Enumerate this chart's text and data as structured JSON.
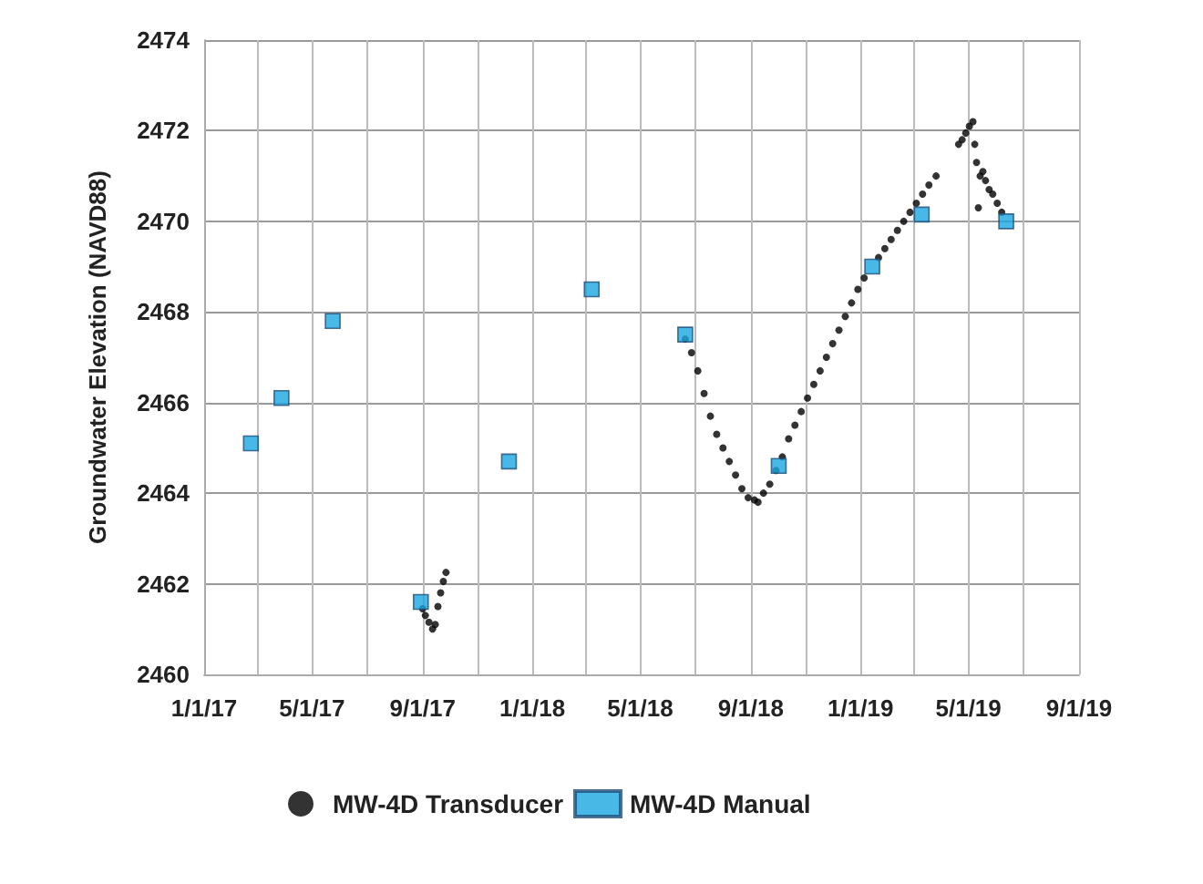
{
  "chart_data": {
    "type": "scatter",
    "ylabel": "Groundwater Elevation (NAVD88)",
    "grid": true,
    "legend": "bottom",
    "xlim": [
      "2017-01-01",
      "2019-09-01"
    ],
    "xticks": [
      {
        "value": "2017-01-01",
        "label": "1/1/17"
      },
      {
        "value": "2017-03-01",
        "label": null
      },
      {
        "value": "2017-05-01",
        "label": "5/1/17"
      },
      {
        "value": "2017-07-01",
        "label": null
      },
      {
        "value": "2017-09-01",
        "label": "9/1/17"
      },
      {
        "value": "2017-11-01",
        "label": null
      },
      {
        "value": "2018-01-01",
        "label": "1/1/18"
      },
      {
        "value": "2018-03-01",
        "label": null
      },
      {
        "value": "2018-05-01",
        "label": "5/1/18"
      },
      {
        "value": "2018-07-01",
        "label": null
      },
      {
        "value": "2018-09-01",
        "label": "9/1/18"
      },
      {
        "value": "2018-11-01",
        "label": null
      },
      {
        "value": "2019-01-01",
        "label": "1/1/19"
      },
      {
        "value": "2019-03-01",
        "label": null
      },
      {
        "value": "2019-05-01",
        "label": "5/1/19"
      },
      {
        "value": "2019-07-01",
        "label": null
      },
      {
        "value": "2019-09-01",
        "label": "9/1/19"
      }
    ],
    "ylim": [
      2460,
      2474
    ],
    "yticks": [
      2460,
      2462,
      2464,
      2466,
      2468,
      2470,
      2472,
      2474
    ],
    "series": [
      {
        "name": "MW-4D Transducer",
        "color": "#000000",
        "marker": "circle",
        "x": [
          "2017-09-01",
          "2017-09-04",
          "2017-09-08",
          "2017-09-12",
          "2017-09-15",
          "2017-09-18",
          "2017-09-21",
          "2017-09-24",
          "2017-09-27",
          "2018-06-20",
          "2018-06-27",
          "2018-07-04",
          "2018-07-11",
          "2018-07-18",
          "2018-07-25",
          "2018-08-01",
          "2018-08-08",
          "2018-08-15",
          "2018-08-22",
          "2018-08-29",
          "2018-09-05",
          "2018-09-09",
          "2018-09-15",
          "2018-09-22",
          "2018-09-29",
          "2018-10-06",
          "2018-10-13",
          "2018-10-20",
          "2018-10-27",
          "2018-11-03",
          "2018-11-10",
          "2018-11-17",
          "2018-11-24",
          "2018-12-01",
          "2018-12-08",
          "2018-12-15",
          "2018-12-22",
          "2018-12-29",
          "2019-01-05",
          "2019-01-21",
          "2019-01-28",
          "2019-02-04",
          "2019-02-11",
          "2019-02-18",
          "2019-02-25",
          "2019-03-04",
          "2019-03-11",
          "2019-03-18",
          "2019-03-26",
          "2019-04-20",
          "2019-04-24",
          "2019-04-28",
          "2019-05-02",
          "2019-05-06",
          "2019-05-08",
          "2019-05-10",
          "2019-05-12",
          "2019-05-14",
          "2019-05-17",
          "2019-05-20",
          "2019-05-24",
          "2019-05-28",
          "2019-06-02",
          "2019-06-07"
        ],
        "values": [
          2461.45,
          2461.3,
          2461.15,
          2461.0,
          2461.1,
          2461.5,
          2461.8,
          2462.05,
          2462.25,
          2467.4,
          2467.1,
          2466.7,
          2466.2,
          2465.7,
          2465.3,
          2465.0,
          2464.7,
          2464.4,
          2464.1,
          2463.9,
          2463.85,
          2463.8,
          2464.0,
          2464.2,
          2464.5,
          2464.8,
          2465.2,
          2465.5,
          2465.8,
          2466.1,
          2466.4,
          2466.7,
          2467.0,
          2467.3,
          2467.6,
          2467.9,
          2468.2,
          2468.5,
          2468.75,
          2469.2,
          2469.4,
          2469.6,
          2469.8,
          2470.0,
          2470.2,
          2470.4,
          2470.6,
          2470.8,
          2471.0,
          2471.7,
          2471.8,
          2471.95,
          2472.1,
          2472.2,
          2471.7,
          2471.3,
          2470.3,
          2471.0,
          2471.1,
          2470.9,
          2470.7,
          2470.6,
          2470.4,
          2470.2
        ]
      },
      {
        "name": "MW-4D Manual",
        "color": "#1aa7e0",
        "marker": "square",
        "x": [
          "2017-02-22",
          "2017-03-28",
          "2017-05-24",
          "2017-08-30",
          "2017-12-06",
          "2018-03-08",
          "2018-06-20",
          "2018-10-02",
          "2019-01-14",
          "2019-03-10",
          "2019-06-12"
        ],
        "values": [
          2465.1,
          2466.1,
          2467.8,
          2461.6,
          2464.7,
          2468.5,
          2467.5,
          2464.6,
          2469.0,
          2470.15,
          2470.0
        ]
      }
    ]
  }
}
